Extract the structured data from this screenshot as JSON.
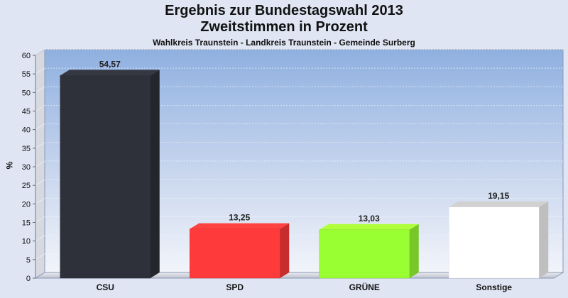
{
  "chart_data": {
    "type": "bar",
    "title_line1": "Ergebnis zur Bundestagswahl 2013",
    "title_line2": "Zweitstimmen in Prozent",
    "subtitle": "Wahlkreis Traunstein - Landkreis Traunstein - Gemeinde Surberg",
    "xlabel": "",
    "ylabel": "%",
    "ylim": [
      0,
      60
    ],
    "ytick_step": 5,
    "grid": true,
    "categories": [
      "CSU",
      "SPD",
      "GRÜNE",
      "Sonstige"
    ],
    "values": [
      54.57,
      13.25,
      13.03,
      19.15
    ],
    "value_labels": [
      "54,57",
      "13,25",
      "13,03",
      "19,15"
    ],
    "colors": [
      "#2e313a",
      "#ff3a3a",
      "#99ff33",
      "#ffffff"
    ]
  }
}
